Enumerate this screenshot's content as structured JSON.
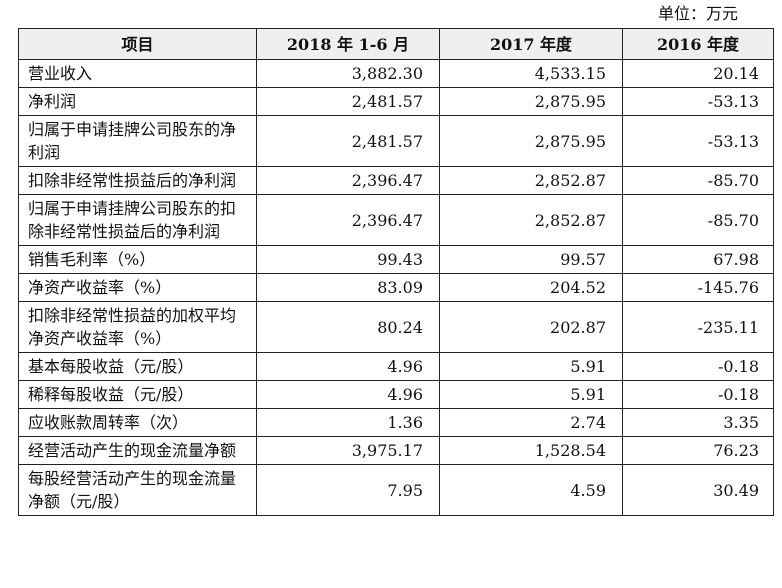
{
  "unit_note": "单位：万元",
  "table": {
    "headers": [
      "项目",
      "2018 年 1-6 月",
      "2017 年度",
      "2016 年度"
    ],
    "rows": [
      {
        "label": "营业收入",
        "v2018": "3,882.30",
        "v2017": "4,533.15",
        "v2016": "20.14"
      },
      {
        "label": "净利润",
        "v2018": "2,481.57",
        "v2017": "2,875.95",
        "v2016": "-53.13"
      },
      {
        "label": "归属于申请挂牌公司股东的净利润",
        "v2018": "2,481.57",
        "v2017": "2,875.95",
        "v2016": "-53.13"
      },
      {
        "label": "扣除非经常性损益后的净利润",
        "v2018": "2,396.47",
        "v2017": "2,852.87",
        "v2016": "-85.70"
      },
      {
        "label": "归属于申请挂牌公司股东的扣除非经常性损益后的净利润",
        "v2018": "2,396.47",
        "v2017": "2,852.87",
        "v2016": "-85.70"
      },
      {
        "label": "销售毛利率（%）",
        "v2018": "99.43",
        "v2017": "99.57",
        "v2016": "67.98"
      },
      {
        "label": "净资产收益率（%）",
        "v2018": "83.09",
        "v2017": "204.52",
        "v2016": "-145.76"
      },
      {
        "label": "扣除非经常性损益的加权平均净资产收益率（%）",
        "v2018": "80.24",
        "v2017": "202.87",
        "v2016": "-235.11"
      },
      {
        "label": "基本每股收益（元/股）",
        "v2018": "4.96",
        "v2017": "5.91",
        "v2016": "-0.18"
      },
      {
        "label": "稀释每股收益（元/股）",
        "v2018": "4.96",
        "v2017": "5.91",
        "v2016": "-0.18"
      },
      {
        "label": "应收账款周转率（次）",
        "v2018": "1.36",
        "v2017": "2.74",
        "v2016": "3.35"
      },
      {
        "label": "经营活动产生的现金流量净额",
        "v2018": "3,975.17",
        "v2017": "1,528.54",
        "v2016": "76.23"
      },
      {
        "label": "每股经营活动产生的现金流量净额（元/股）",
        "v2018": "7.95",
        "v2017": "4.59",
        "v2016": "30.49"
      }
    ]
  }
}
